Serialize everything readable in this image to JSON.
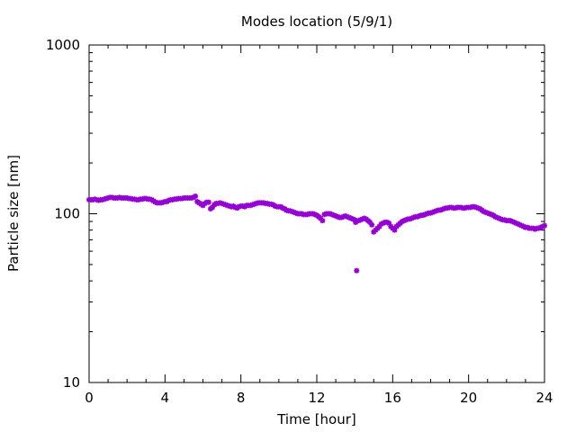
{
  "chart_data": {
    "type": "scatter",
    "title": "Modes location (5/9/1)",
    "xlabel": "Time [hour]",
    "ylabel": "Particle size [nm]",
    "xlim": [
      0,
      24
    ],
    "ylim": [
      10,
      1000
    ],
    "y_scale": "log",
    "x_ticks": [
      0,
      4,
      8,
      12,
      16,
      20,
      24
    ],
    "x_tick_labels": [
      "0",
      "4",
      "8",
      "12",
      "16",
      "20",
      "24"
    ],
    "y_ticks": [
      10,
      100,
      1000
    ],
    "y_tick_labels": [
      "10",
      "100",
      "1000"
    ],
    "grid": false,
    "legend": "none",
    "marker_color": "#9400d3",
    "series": [
      {
        "x": [
          0.0,
          0.1,
          0.2,
          0.3,
          0.4,
          0.5,
          0.6,
          0.7,
          0.8,
          0.9,
          1.0,
          1.1,
          1.2,
          1.3,
          1.4,
          1.5,
          1.6,
          1.7,
          1.8,
          1.9,
          2.0,
          2.1,
          2.2,
          2.3,
          2.4,
          2.5,
          2.6,
          2.7,
          2.8,
          2.9,
          3.0,
          3.1,
          3.2,
          3.3,
          3.4,
          3.5,
          3.6,
          3.7,
          3.8,
          3.9,
          4.0,
          4.1,
          4.2,
          4.3,
          4.4,
          4.5,
          4.6,
          4.7,
          4.8,
          4.9,
          5.0,
          5.1,
          5.2,
          5.3,
          5.4,
          5.5,
          5.6,
          5.7,
          5.8,
          5.9,
          6.0,
          6.1,
          6.2,
          6.3,
          6.4,
          6.5,
          6.6,
          6.7,
          6.8,
          6.9,
          7.0,
          7.1,
          7.2,
          7.3,
          7.4,
          7.5,
          7.6,
          7.7,
          7.8,
          7.9,
          8.0,
          8.1,
          8.2,
          8.3,
          8.4,
          8.5,
          8.6,
          8.7,
          8.8,
          8.9,
          9.0,
          9.1,
          9.2,
          9.3,
          9.4,
          9.5,
          9.6,
          9.7,
          9.8,
          9.9,
          10.0,
          10.1,
          10.2,
          10.3,
          10.4,
          10.5,
          10.6,
          10.7,
          10.8,
          10.9,
          11.0,
          11.1,
          11.2,
          11.3,
          11.4,
          11.5,
          11.6,
          11.7,
          11.8,
          11.9,
          12.0,
          12.1,
          12.2,
          12.3,
          12.4,
          12.5,
          12.6,
          12.7,
          12.8,
          12.9,
          13.0,
          13.1,
          13.2,
          13.3,
          13.4,
          13.5,
          13.6,
          13.7,
          13.8,
          13.9,
          14.0,
          14.05,
          14.1,
          14.2,
          14.3,
          14.4,
          14.5,
          14.6,
          14.7,
          14.8,
          14.9,
          15.0,
          15.1,
          15.2,
          15.3,
          15.4,
          15.5,
          15.6,
          15.7,
          15.8,
          15.9,
          16.0,
          16.1,
          16.2,
          16.3,
          16.4,
          16.5,
          16.6,
          16.7,
          16.8,
          16.9,
          17.0,
          17.1,
          17.2,
          17.3,
          17.4,
          17.5,
          17.6,
          17.7,
          17.8,
          17.9,
          18.0,
          18.1,
          18.2,
          18.3,
          18.4,
          18.5,
          18.6,
          18.7,
          18.8,
          18.9,
          19.0,
          19.1,
          19.2,
          19.3,
          19.4,
          19.5,
          19.6,
          19.7,
          19.8,
          19.9,
          20.0,
          20.1,
          20.2,
          20.3,
          20.4,
          20.5,
          20.6,
          20.7,
          20.8,
          20.9,
          21.0,
          21.1,
          21.2,
          21.3,
          21.4,
          21.5,
          21.6,
          21.7,
          21.8,
          21.9,
          22.0,
          22.1,
          22.2,
          22.3,
          22.4,
          22.5,
          22.6,
          22.7,
          22.8,
          22.9,
          23.0,
          23.1,
          23.2,
          23.3,
          23.4,
          23.5,
          23.6,
          23.7,
          23.8,
          23.9,
          24.0
        ],
        "y": [
          121,
          121,
          121,
          122,
          121,
          120,
          121,
          121,
          122,
          123,
          124,
          125,
          125,
          124,
          124,
          124,
          125,
          124,
          124,
          124,
          124,
          123,
          123,
          122,
          122,
          121,
          121,
          122,
          122,
          123,
          123,
          122,
          122,
          121,
          119,
          117,
          116,
          116,
          116,
          117,
          118,
          118,
          120,
          121,
          121,
          122,
          122,
          123,
          123,
          123,
          124,
          124,
          124,
          124,
          124,
          125,
          127,
          118,
          116,
          114,
          112,
          115,
          117,
          117,
          107,
          109,
          113,
          115,
          115,
          116,
          115,
          114,
          113,
          112,
          111,
          110,
          111,
          109,
          108,
          110,
          111,
          111,
          110,
          112,
          112,
          112,
          113,
          114,
          115,
          116,
          116,
          116,
          116,
          115,
          115,
          114,
          114,
          113,
          111,
          110,
          110,
          110,
          108,
          107,
          105,
          104,
          104,
          103,
          102,
          101,
          100,
          100,
          100,
          99,
          99,
          99,
          100,
          100,
          100,
          99,
          98,
          96,
          94,
          91,
          99,
          100,
          100,
          100,
          99,
          98,
          97,
          96,
          95,
          95,
          96,
          97,
          96,
          95,
          94,
          93,
          92,
          89,
          46,
          91,
          92,
          93,
          94,
          93,
          91,
          89,
          86,
          78,
          80,
          82,
          84,
          87,
          88,
          89,
          89,
          88,
          84,
          82,
          80,
          84,
          86,
          88,
          90,
          91,
          92,
          93,
          93,
          94,
          95,
          96,
          96,
          97,
          98,
          98,
          99,
          100,
          101,
          101,
          102,
          103,
          104,
          105,
          105,
          106,
          107,
          108,
          108,
          109,
          109,
          108,
          108,
          109,
          109,
          109,
          108,
          108,
          109,
          109,
          109,
          110,
          110,
          109,
          108,
          107,
          105,
          103,
          102,
          101,
          100,
          99,
          98,
          96,
          95,
          94,
          93,
          92,
          92,
          91,
          91,
          91,
          90,
          89,
          88,
          87,
          86,
          85,
          84,
          83,
          83,
          82,
          82,
          82,
          81,
          82,
          82,
          83,
          84,
          85
        ]
      }
    ]
  }
}
